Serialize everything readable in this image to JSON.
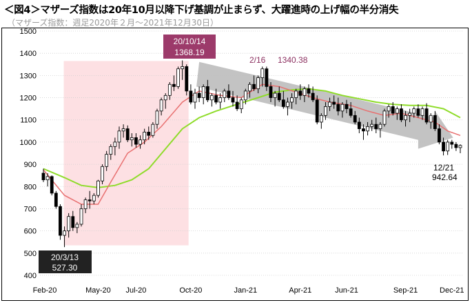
{
  "title": "＜図4＞マザーズ指数は20年10月以降下げ基調が止まらず、大躍進時の上げ幅の半分消失",
  "subtitle": "（マザーズ指数：週足2020年２月～2021年12月30日）",
  "chart_data": {
    "type": "candlestick",
    "title": "＜図4＞マザーズ指数は20年10月以降下げ基調が止まらず、大躍進時の上げ幅の半分消失",
    "subtitle": "（マザーズ指数：週足2020年２月～2021年12月30日）",
    "ylim": [
      400,
      1500
    ],
    "yticks": [
      400,
      500,
      600,
      700,
      800,
      900,
      1000,
      1100,
      1200,
      1300,
      1400,
      1500
    ],
    "xticks": [
      "Feb-20",
      "May-20",
      "Jul-20",
      "Oct-20",
      "Jan-21",
      "Apr-21",
      "Jun-21",
      "Sep-21",
      "Dec-21"
    ],
    "grid": true,
    "colors": {
      "up_candle": "#ffffff",
      "down_candle": "#000000",
      "ma_short": "#e87070",
      "ma_long": "#8fdc2a",
      "rally_zone": "#fde0e3",
      "trend_arrow": "#bdbdbd",
      "label_box": "#222222",
      "peak_box": "#9c3a6a",
      "peak2_text": "#8b2f5f"
    },
    "annotations": [
      {
        "date": "2020/3/13",
        "label": "20/3/13",
        "value": "527.30"
      },
      {
        "date": "2020/10/14",
        "label": "20/10/14",
        "value": "1368.19"
      },
      {
        "date": "2021/2/16",
        "label": "2/16",
        "value": "1340.38"
      },
      {
        "date": "2021/12/21",
        "label": "12/21",
        "value": "942.64"
      }
    ],
    "weeks": [
      "2020-02-07",
      "2020-02-14",
      "2020-02-21",
      "2020-02-28",
      "2020-03-06",
      "2020-03-13",
      "2020-03-20",
      "2020-03-27",
      "2020-04-03",
      "2020-04-10",
      "2020-04-17",
      "2020-04-24",
      "2020-05-01",
      "2020-05-08",
      "2020-05-15",
      "2020-05-22",
      "2020-05-29",
      "2020-06-05",
      "2020-06-12",
      "2020-06-19",
      "2020-06-26",
      "2020-07-03",
      "2020-07-10",
      "2020-07-17",
      "2020-07-24",
      "2020-07-31",
      "2020-08-07",
      "2020-08-14",
      "2020-08-21",
      "2020-08-28",
      "2020-09-04",
      "2020-09-11",
      "2020-09-18",
      "2020-09-25",
      "2020-10-02",
      "2020-10-09",
      "2020-10-16",
      "2020-10-23",
      "2020-10-30",
      "2020-11-06",
      "2020-11-13",
      "2020-11-20",
      "2020-11-27",
      "2020-12-04",
      "2020-12-11",
      "2020-12-18",
      "2020-12-25",
      "2021-01-01",
      "2021-01-08",
      "2021-01-15",
      "2021-01-22",
      "2021-01-29",
      "2021-02-05",
      "2021-02-12",
      "2021-02-19",
      "2021-02-26",
      "2021-03-05",
      "2021-03-12",
      "2021-03-19",
      "2021-03-26",
      "2021-04-02",
      "2021-04-09",
      "2021-04-16",
      "2021-04-23",
      "2021-04-30",
      "2021-05-07",
      "2021-05-14",
      "2021-05-21",
      "2021-05-28",
      "2021-06-04",
      "2021-06-11",
      "2021-06-18",
      "2021-06-25",
      "2021-07-02",
      "2021-07-09",
      "2021-07-16",
      "2021-07-23",
      "2021-07-30",
      "2021-08-06",
      "2021-08-13",
      "2021-08-20",
      "2021-08-27",
      "2021-09-03",
      "2021-09-10",
      "2021-09-17",
      "2021-09-24",
      "2021-10-01",
      "2021-10-08",
      "2021-10-15",
      "2021-10-22",
      "2021-10-29",
      "2021-11-05",
      "2021-11-12",
      "2021-11-19",
      "2021-11-26",
      "2021-12-03",
      "2021-12-10",
      "2021-12-17",
      "2021-12-24",
      "2021-12-30"
    ],
    "candles": [
      [
        860,
        880,
        820,
        830
      ],
      [
        830,
        860,
        800,
        845
      ],
      [
        845,
        850,
        760,
        770
      ],
      [
        770,
        780,
        700,
        710
      ],
      [
        710,
        720,
        560,
        580
      ],
      [
        580,
        620,
        527,
        600
      ],
      [
        600,
        680,
        570,
        665
      ],
      [
        665,
        690,
        600,
        615
      ],
      [
        615,
        640,
        590,
        630
      ],
      [
        630,
        720,
        620,
        700
      ],
      [
        700,
        750,
        680,
        740
      ],
      [
        740,
        780,
        700,
        735
      ],
      [
        735,
        770,
        720,
        760
      ],
      [
        760,
        830,
        750,
        825
      ],
      [
        825,
        900,
        810,
        890
      ],
      [
        890,
        960,
        870,
        945
      ],
      [
        945,
        990,
        920,
        980
      ],
      [
        980,
        1020,
        940,
        1000
      ],
      [
        1000,
        1070,
        970,
        1050
      ],
      [
        1050,
        1080,
        1020,
        1060
      ],
      [
        1060,
        1075,
        1000,
        1010
      ],
      [
        1010,
        1040,
        980,
        1020
      ],
      [
        1020,
        1040,
        975,
        990
      ],
      [
        990,
        1030,
        970,
        1010
      ],
      [
        1010,
        1060,
        990,
        1045
      ],
      [
        1045,
        1070,
        1010,
        1030
      ],
      [
        1030,
        1090,
        1020,
        1080
      ],
      [
        1080,
        1150,
        1060,
        1140
      ],
      [
        1140,
        1200,
        1120,
        1190
      ],
      [
        1190,
        1220,
        1150,
        1210
      ],
      [
        1210,
        1270,
        1190,
        1260
      ],
      [
        1260,
        1300,
        1230,
        1250
      ],
      [
        1250,
        1340,
        1240,
        1330
      ],
      [
        1330,
        1368,
        1280,
        1340
      ],
      [
        1340,
        1350,
        1210,
        1230
      ],
      [
        1230,
        1260,
        1170,
        1180
      ],
      [
        1180,
        1240,
        1150,
        1220
      ],
      [
        1220,
        1250,
        1180,
        1200
      ],
      [
        1200,
        1260,
        1170,
        1250
      ],
      [
        1250,
        1280,
        1180,
        1190
      ],
      [
        1190,
        1220,
        1160,
        1210
      ],
      [
        1210,
        1240,
        1170,
        1180
      ],
      [
        1180,
        1220,
        1150,
        1200
      ],
      [
        1200,
        1240,
        1180,
        1230
      ],
      [
        1230,
        1260,
        1190,
        1200
      ],
      [
        1200,
        1230,
        1160,
        1180
      ],
      [
        1180,
        1210,
        1140,
        1150
      ],
      [
        1150,
        1200,
        1130,
        1190
      ],
      [
        1190,
        1240,
        1170,
        1230
      ],
      [
        1230,
        1270,
        1200,
        1260
      ],
      [
        1260,
        1300,
        1230,
        1240
      ],
      [
        1240,
        1300,
        1220,
        1290
      ],
      [
        1290,
        1340,
        1250,
        1330
      ],
      [
        1330,
        1340,
        1230,
        1250
      ],
      [
        1250,
        1270,
        1180,
        1200
      ],
      [
        1200,
        1230,
        1160,
        1220
      ],
      [
        1220,
        1250,
        1180,
        1190
      ],
      [
        1190,
        1230,
        1150,
        1160
      ],
      [
        1160,
        1200,
        1120,
        1180
      ],
      [
        1180,
        1220,
        1150,
        1200
      ],
      [
        1200,
        1240,
        1170,
        1230
      ],
      [
        1230,
        1260,
        1190,
        1210
      ],
      [
        1210,
        1250,
        1180,
        1240
      ],
      [
        1240,
        1260,
        1200,
        1220
      ],
      [
        1220,
        1250,
        1180,
        1190
      ],
      [
        1190,
        1210,
        1080,
        1090
      ],
      [
        1090,
        1130,
        1060,
        1120
      ],
      [
        1120,
        1180,
        1100,
        1160
      ],
      [
        1160,
        1200,
        1140,
        1180
      ],
      [
        1180,
        1210,
        1150,
        1170
      ],
      [
        1170,
        1200,
        1120,
        1140
      ],
      [
        1140,
        1180,
        1110,
        1170
      ],
      [
        1170,
        1190,
        1130,
        1150
      ],
      [
        1150,
        1180,
        1110,
        1120
      ],
      [
        1120,
        1140,
        1080,
        1090
      ],
      [
        1090,
        1110,
        1040,
        1060
      ],
      [
        1060,
        1080,
        1010,
        1050
      ],
      [
        1050,
        1090,
        1030,
        1070
      ],
      [
        1070,
        1100,
        1050,
        1080
      ],
      [
        1080,
        1110,
        1040,
        1060
      ],
      [
        1060,
        1090,
        1020,
        1080
      ],
      [
        1080,
        1150,
        1070,
        1140
      ],
      [
        1140,
        1170,
        1110,
        1160
      ],
      [
        1160,
        1180,
        1120,
        1130
      ],
      [
        1130,
        1160,
        1100,
        1150
      ],
      [
        1150,
        1170,
        1090,
        1100
      ],
      [
        1100,
        1140,
        1070,
        1120
      ],
      [
        1120,
        1150,
        1090,
        1130
      ],
      [
        1130,
        1160,
        1110,
        1150
      ],
      [
        1150,
        1170,
        1110,
        1120
      ],
      [
        1120,
        1160,
        1100,
        1150
      ],
      [
        1150,
        1175,
        1080,
        1090
      ],
      [
        1090,
        1130,
        1060,
        1120
      ],
      [
        1120,
        1140,
        1050,
        1060
      ],
      [
        1060,
        1080,
        990,
        1000
      ],
      [
        1000,
        1020,
        940,
        960
      ],
      [
        960,
        1010,
        942,
        1000
      ],
      [
        1000,
        1010,
        970,
        990
      ],
      [
        990,
        1000,
        960,
        975
      ],
      [
        975,
        990,
        950,
        985
      ]
    ],
    "ma_short_nodes": [
      [
        0,
        875
      ],
      [
        5,
        760
      ],
      [
        9,
        720
      ],
      [
        13,
        720
      ],
      [
        16,
        820
      ],
      [
        20,
        950
      ],
      [
        24,
        1000
      ],
      [
        28,
        1070
      ],
      [
        33,
        1180
      ],
      [
        37,
        1230
      ],
      [
        42,
        1210
      ],
      [
        47,
        1200
      ],
      [
        52,
        1260
      ],
      [
        56,
        1250
      ],
      [
        60,
        1225
      ],
      [
        64,
        1200
      ],
      [
        68,
        1180
      ],
      [
        73,
        1165
      ],
      [
        77,
        1140
      ],
      [
        81,
        1120
      ],
      [
        85,
        1130
      ],
      [
        89,
        1110
      ],
      [
        93,
        1090
      ],
      [
        96,
        1050
      ],
      [
        99,
        1030
      ]
    ],
    "ma_long_nodes": [
      [
        0,
        880
      ],
      [
        5,
        840
      ],
      [
        9,
        805
      ],
      [
        13,
        795
      ],
      [
        17,
        805
      ],
      [
        21,
        830
      ],
      [
        25,
        880
      ],
      [
        29,
        970
      ],
      [
        33,
        1060
      ],
      [
        37,
        1110
      ],
      [
        41,
        1140
      ],
      [
        46,
        1170
      ],
      [
        51,
        1200
      ],
      [
        55,
        1225
      ],
      [
        59,
        1235
      ],
      [
        63,
        1240
      ],
      [
        67,
        1230
      ],
      [
        71,
        1210
      ],
      [
        75,
        1195
      ],
      [
        79,
        1180
      ],
      [
        83,
        1170
      ],
      [
        87,
        1165
      ],
      [
        91,
        1165
      ],
      [
        95,
        1150
      ],
      [
        99,
        1110
      ]
    ]
  }
}
